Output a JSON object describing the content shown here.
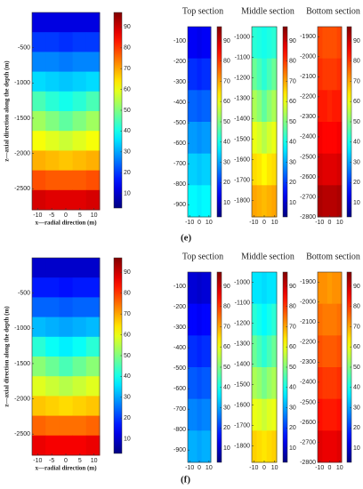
{
  "panel_labels": [
    "(e)",
    "(f)"
  ],
  "chart_data": [
    {
      "type": "contour",
      "xlabel": "x—radial direction (m)",
      "ylabel": "z—axial direction along the depth (m)",
      "xlim": [
        -12,
        12
      ],
      "xticks": [
        -10,
        -5,
        0,
        5,
        10
      ],
      "ylim": [
        -2800,
        0
      ],
      "yticks": [
        -2500,
        -2000,
        -1500,
        -1000,
        -500
      ],
      "clim": [
        3,
        97
      ],
      "cticks": [
        10,
        20,
        30,
        40,
        50,
        60,
        70,
        80,
        90
      ],
      "z": [
        [
          12,
          12,
          12,
          12,
          12
        ],
        [
          20,
          20,
          19,
          20,
          20
        ],
        [
          27,
          27,
          26,
          27,
          27
        ],
        [
          35,
          34,
          33,
          34,
          35
        ],
        [
          45,
          42,
          40,
          42,
          45
        ],
        [
          53,
          50,
          47,
          50,
          53
        ],
        [
          61,
          59,
          57,
          59,
          61
        ],
        [
          69,
          68,
          67,
          68,
          69
        ],
        [
          78,
          77,
          77,
          77,
          78
        ],
        [
          89,
          88,
          88,
          88,
          89
        ]
      ]
    },
    {
      "type": "contour",
      "title": "Top section",
      "xlim": [
        -12,
        12
      ],
      "xticks": [
        -10,
        0,
        10
      ],
      "ylim": [
        -960,
        -30
      ],
      "yticks": [
        -900,
        -800,
        -700,
        -600,
        -500,
        -400,
        -300,
        -200,
        -100
      ],
      "clim": [
        3,
        97
      ],
      "cticks": [
        10,
        20,
        30,
        40,
        50,
        60,
        70,
        80,
        90
      ],
      "z": [
        [
          14,
          14,
          13,
          14,
          14
        ],
        [
          19,
          19,
          18,
          19,
          19
        ],
        [
          24,
          24,
          23,
          24,
          24
        ],
        [
          29,
          29,
          28,
          29,
          29
        ],
        [
          34,
          34,
          33,
          34,
          34
        ],
        [
          38,
          38,
          37,
          38,
          38
        ]
      ]
    },
    {
      "type": "contour",
      "title": "Middle section",
      "xlim": [
        -12,
        12
      ],
      "xticks": [
        -10,
        0,
        10
      ],
      "ylim": [
        -1880,
        -950
      ],
      "yticks": [
        -1800,
        -1700,
        -1600,
        -1500,
        -1400,
        -1300,
        -1200,
        -1100,
        -1000
      ],
      "clim": [
        3,
        97
      ],
      "cticks": [
        10,
        20,
        30,
        40,
        50,
        60,
        70,
        80,
        90
      ],
      "z": [
        [
          42,
          41,
          40,
          41,
          42
        ],
        [
          48,
          45,
          42,
          45,
          48
        ],
        [
          54,
          51,
          47,
          51,
          54
        ],
        [
          60,
          58,
          55,
          58,
          60
        ],
        [
          65,
          64,
          62,
          64,
          65
        ],
        [
          70,
          69,
          68,
          69,
          70
        ]
      ]
    },
    {
      "type": "contour",
      "title": "Bottom section",
      "xlim": [
        -12,
        12
      ],
      "xticks": [
        -10,
        0,
        10
      ],
      "ylim": [
        -2800,
        -1850
      ],
      "yticks": [
        -2800,
        -2700,
        -2600,
        -2500,
        -2400,
        -2300,
        -2200,
        -2100,
        -2000,
        -1900
      ],
      "clim": [
        3,
        97
      ],
      "cticks": [
        10,
        20,
        30,
        40,
        50,
        60,
        70,
        80,
        90
      ],
      "z": [
        [
          79,
          78,
          78,
          78,
          79
        ],
        [
          81,
          80,
          80,
          80,
          81
        ],
        [
          83,
          83,
          82,
          83,
          83
        ],
        [
          86,
          85,
          85,
          85,
          86
        ],
        [
          89,
          88,
          88,
          88,
          89
        ],
        [
          93,
          92,
          92,
          92,
          93
        ]
      ]
    },
    {
      "type": "contour",
      "xlabel": "x—radial direction (m)",
      "ylabel": "z—axial direction along the depth (m)",
      "xlim": [
        -12,
        12
      ],
      "xticks": [
        -10,
        -5,
        0,
        5,
        10
      ],
      "ylim": [
        -2800,
        0
      ],
      "yticks": [
        -2500,
        -2000,
        -1500,
        -1000,
        -500
      ],
      "clim": [
        3,
        97
      ],
      "cticks": [
        10,
        20,
        30,
        40,
        50,
        60,
        70,
        80,
        90
      ],
      "z": [
        [
          10,
          10,
          10,
          10,
          10
        ],
        [
          17,
          17,
          16,
          17,
          17
        ],
        [
          24,
          24,
          23,
          24,
          24
        ],
        [
          32,
          31,
          30,
          31,
          32
        ],
        [
          42,
          39,
          37,
          39,
          42
        ],
        [
          51,
          48,
          45,
          48,
          51
        ],
        [
          59,
          57,
          55,
          57,
          59
        ],
        [
          67,
          66,
          65,
          66,
          67
        ],
        [
          76,
          75,
          75,
          75,
          76
        ],
        [
          87,
          86,
          86,
          86,
          87
        ]
      ]
    },
    {
      "type": "contour",
      "title": "Top section",
      "xlim": [
        -12,
        12
      ],
      "xticks": [
        -10,
        0,
        10
      ],
      "ylim": [
        -960,
        -30
      ],
      "yticks": [
        -900,
        -800,
        -700,
        -600,
        -500,
        -400,
        -300,
        -200,
        -100
      ],
      "clim": [
        3,
        97
      ],
      "cticks": [
        10,
        20,
        30,
        40,
        50,
        60,
        70,
        80,
        90
      ],
      "z": [
        [
          11,
          11,
          10,
          11,
          11
        ],
        [
          15,
          15,
          14,
          15,
          15
        ],
        [
          19,
          19,
          18,
          19,
          19
        ],
        [
          23,
          23,
          22,
          23,
          23
        ],
        [
          27,
          27,
          26,
          27,
          27
        ],
        [
          31,
          31,
          30,
          31,
          31
        ]
      ]
    },
    {
      "type": "contour",
      "title": "Middle section",
      "xlim": [
        -12,
        12
      ],
      "xticks": [
        -10,
        0,
        10
      ],
      "ylim": [
        -1880,
        -950
      ],
      "yticks": [
        -1800,
        -1700,
        -1600,
        -1500,
        -1400,
        -1300,
        -1200,
        -1100,
        -1000
      ],
      "clim": [
        3,
        97
      ],
      "cticks": [
        10,
        20,
        30,
        40,
        50,
        60,
        70,
        80,
        90
      ],
      "z": [
        [
          36,
          36,
          35,
          36,
          36
        ],
        [
          42,
          40,
          38,
          40,
          42
        ],
        [
          48,
          45,
          42,
          45,
          48
        ],
        [
          54,
          52,
          49,
          52,
          54
        ],
        [
          60,
          59,
          57,
          59,
          60
        ],
        [
          66,
          65,
          64,
          65,
          66
        ]
      ]
    },
    {
      "type": "contour",
      "title": "Bottom section",
      "xlim": [
        -12,
        12
      ],
      "xticks": [
        -10,
        0,
        10
      ],
      "ylim": [
        -2800,
        -1850
      ],
      "yticks": [
        -2800,
        -2700,
        -2600,
        -2500,
        -2400,
        -2300,
        -2200,
        -2100,
        -2000,
        -1900
      ],
      "clim": [
        3,
        97
      ],
      "cticks": [
        10,
        20,
        30,
        40,
        50,
        60,
        70,
        80,
        90
      ],
      "z": [
        [
          72,
          72,
          71,
          72,
          72
        ],
        [
          75,
          74,
          74,
          74,
          75
        ],
        [
          78,
          77,
          77,
          77,
          78
        ],
        [
          81,
          80,
          80,
          80,
          81
        ],
        [
          84,
          83,
          83,
          83,
          84
        ],
        [
          88,
          87,
          87,
          87,
          88
        ]
      ]
    }
  ]
}
